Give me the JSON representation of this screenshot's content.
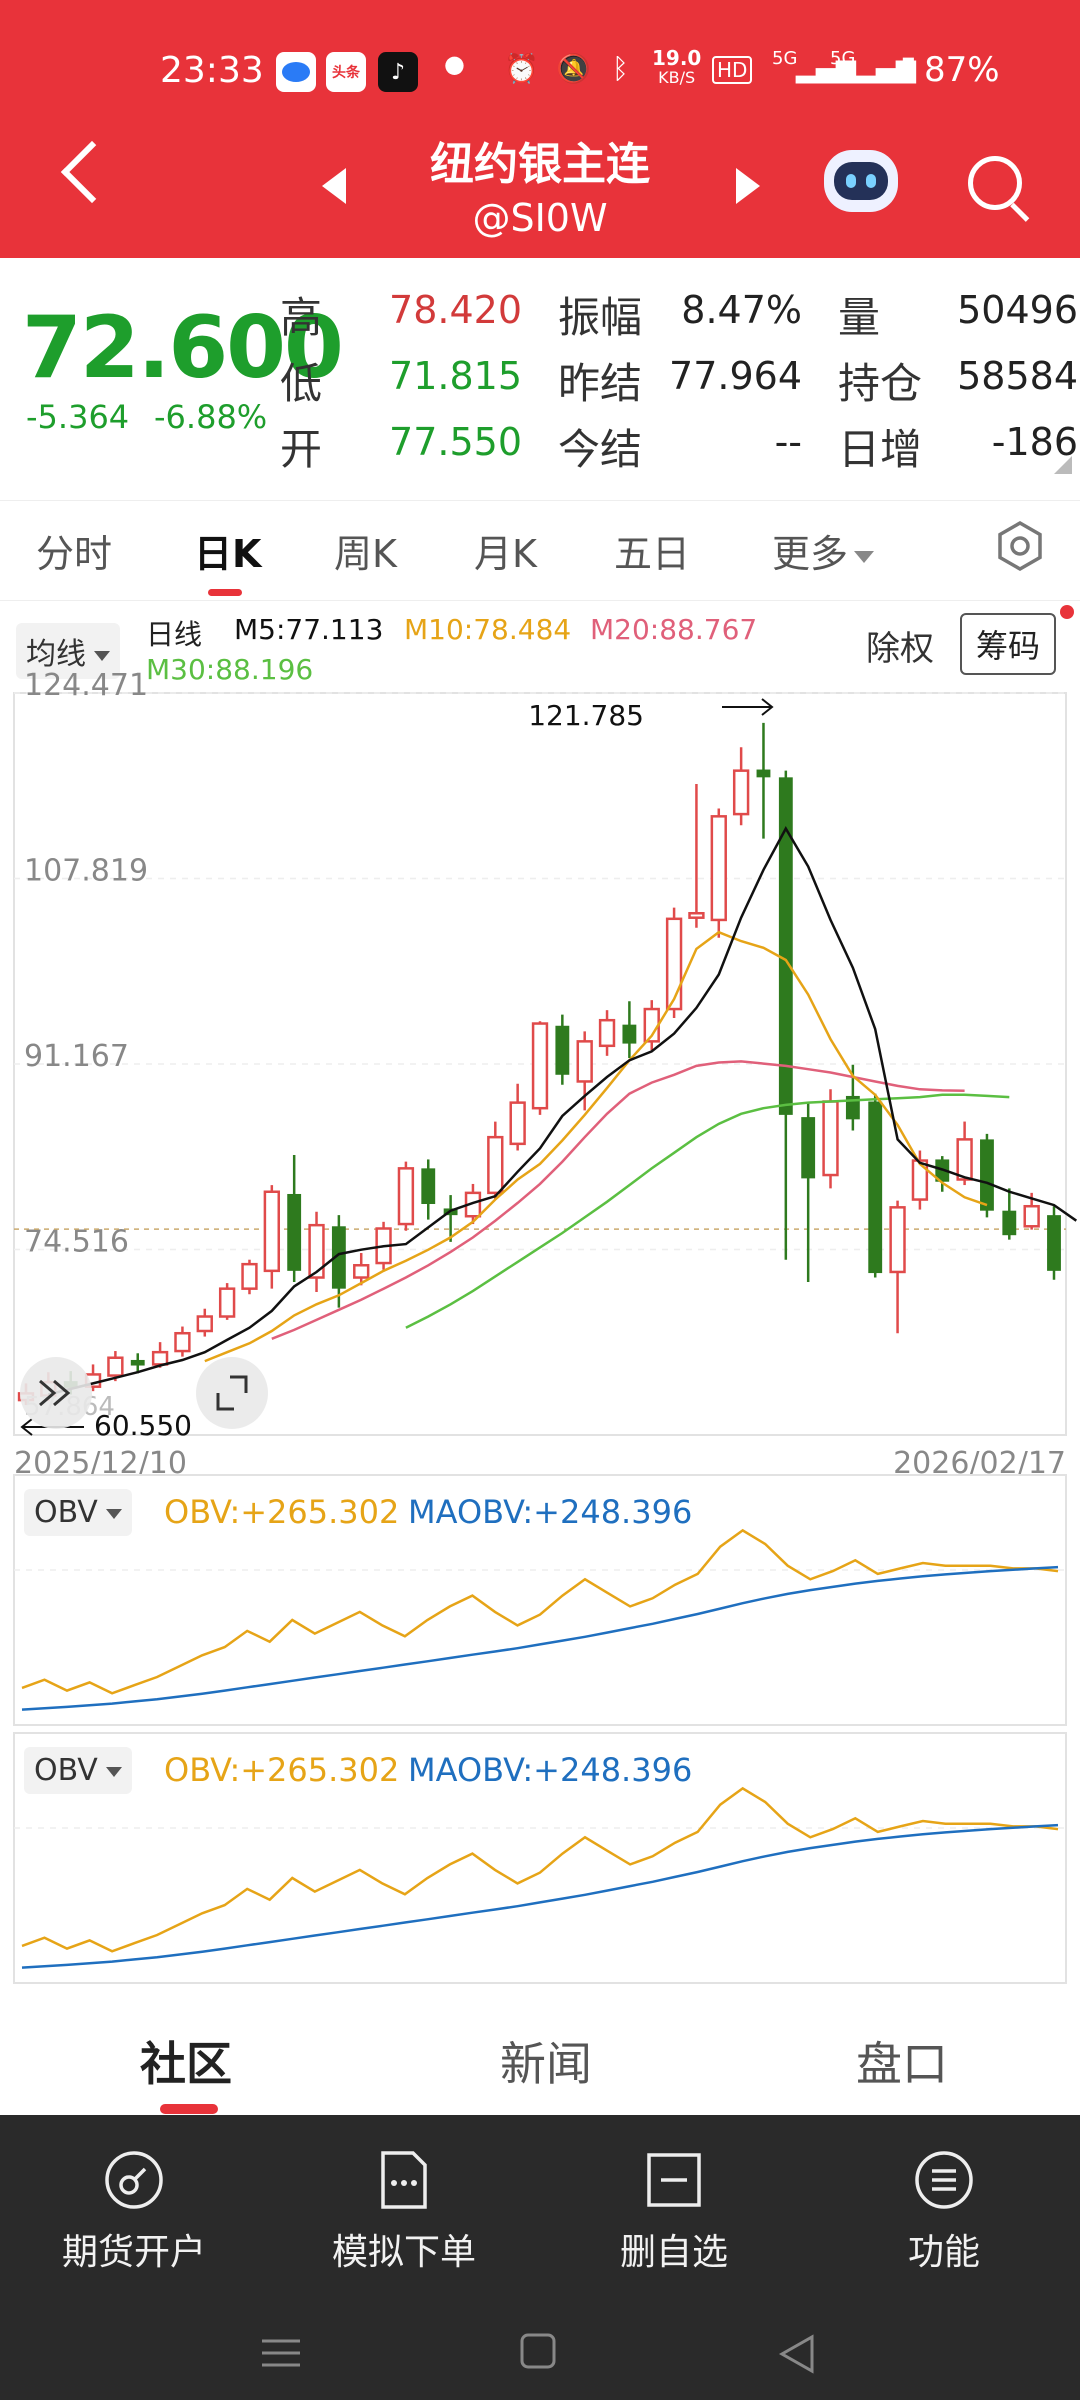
{
  "status": {
    "time": "23:33",
    "app_badge_1": "头条",
    "network_speed": "19.0",
    "network_unit": "KB/S",
    "hd": "HD",
    "signal_1": "5G",
    "signal_2": "5G",
    "battery": "87%"
  },
  "header": {
    "title": "纽约银主连",
    "symbol": "@SI0W"
  },
  "quote": {
    "price": "72.600",
    "change": "-5.364",
    "change_pct": "-6.88%",
    "rows": [
      {
        "l1": "高",
        "v1": "78.420",
        "l2": "振幅",
        "v2": "8.47%",
        "l3": "量",
        "v3": "50496"
      },
      {
        "l1": "低",
        "v1": "71.815",
        "l2": "昨结",
        "v2": "77.964",
        "l3": "持仓",
        "v3": "58584"
      },
      {
        "l1": "开",
        "v1": "77.550",
        "l2": "今结",
        "v2": "--",
        "l3": "日增",
        "v3": "-186"
      }
    ]
  },
  "tabs": [
    "分时",
    "日K",
    "周K",
    "月K",
    "五日",
    "更多"
  ],
  "chart": {
    "ma_dropdown": "均线",
    "period_label": "日线",
    "m5": "M5:77.113",
    "m10": "M10:78.484",
    "m20": "M20:88.767",
    "m30": "M30:88.196",
    "ex_right": "除权",
    "chip_button": "筹码",
    "date_start": "2025/12/10",
    "date_end": "2026/02/17",
    "high_label": "121.785",
    "low_label": "60.550",
    "bottom_axis_label": "57.864",
    "obv_dropdown": "OBV",
    "obv_value": "OBV:+265.302",
    "maobv_value": "MAOBV:+248.396"
  },
  "chart_data": {
    "type": "candlestick",
    "title": "",
    "y_ticks": [
      "124.471",
      "107.819",
      "91.167",
      "74.516"
    ],
    "ylim": [
      57.864,
      124.471
    ],
    "x_range": [
      "2025/12/10",
      "2026/02/17"
    ],
    "candles": [
      {
        "o": 61.0,
        "c": 61.6,
        "h": 62.5,
        "l": 60.55
      },
      {
        "o": 61.4,
        "c": 62.6,
        "h": 63.5,
        "l": 60.9
      },
      {
        "o": 62.7,
        "c": 62.1,
        "h": 63.6,
        "l": 61.5
      },
      {
        "o": 62.2,
        "c": 63.3,
        "h": 64.2,
        "l": 61.8
      },
      {
        "o": 63.2,
        "c": 64.8,
        "h": 65.4,
        "l": 62.7
      },
      {
        "o": 64.6,
        "c": 64.1,
        "h": 65.2,
        "l": 63.4
      },
      {
        "o": 64.2,
        "c": 65.3,
        "h": 66.2,
        "l": 63.9
      },
      {
        "o": 65.4,
        "c": 67.0,
        "h": 67.6,
        "l": 64.9
      },
      {
        "o": 67.2,
        "c": 68.5,
        "h": 69.2,
        "l": 66.7
      },
      {
        "o": 68.5,
        "c": 71.0,
        "h": 71.5,
        "l": 68.2
      },
      {
        "o": 71.0,
        "c": 73.2,
        "h": 73.6,
        "l": 70.5
      },
      {
        "o": 72.6,
        "c": 79.7,
        "h": 80.3,
        "l": 71.0
      },
      {
        "o": 79.5,
        "c": 72.6,
        "h": 83.0,
        "l": 71.6
      },
      {
        "o": 72.0,
        "c": 76.7,
        "h": 77.9,
        "l": 70.7
      },
      {
        "o": 76.6,
        "c": 71.0,
        "h": 77.6,
        "l": 69.3
      },
      {
        "o": 72.0,
        "c": 73.1,
        "h": 74.2,
        "l": 71.3
      },
      {
        "o": 73.3,
        "c": 76.4,
        "h": 77.0,
        "l": 72.7
      },
      {
        "o": 76.8,
        "c": 81.8,
        "h": 82.4,
        "l": 76.2
      },
      {
        "o": 81.8,
        "c": 78.6,
        "h": 82.6,
        "l": 77.2
      },
      {
        "o": 78.2,
        "c": 77.6,
        "h": 79.4,
        "l": 75.2
      },
      {
        "o": 77.5,
        "c": 79.6,
        "h": 80.4,
        "l": 76.8
      },
      {
        "o": 79.6,
        "c": 84.6,
        "h": 86.0,
        "l": 79.0
      },
      {
        "o": 84.0,
        "c": 87.7,
        "h": 89.4,
        "l": 83.4
      },
      {
        "o": 87.2,
        "c": 94.8,
        "h": 95.0,
        "l": 86.6
      },
      {
        "o": 94.6,
        "c": 90.2,
        "h": 95.6,
        "l": 89.3
      },
      {
        "o": 89.6,
        "c": 93.2,
        "h": 94.1,
        "l": 87.0
      },
      {
        "o": 92.8,
        "c": 95.1,
        "h": 96.0,
        "l": 91.9
      },
      {
        "o": 94.7,
        "c": 93.0,
        "h": 96.8,
        "l": 91.7
      },
      {
        "o": 93.2,
        "c": 96.1,
        "h": 96.9,
        "l": 92.4
      },
      {
        "o": 96.1,
        "c": 104.2,
        "h": 105.2,
        "l": 95.3
      },
      {
        "o": 104.3,
        "c": 104.7,
        "h": 116.3,
        "l": 103.4
      },
      {
        "o": 104.1,
        "c": 113.4,
        "h": 114.1,
        "l": 102.5
      },
      {
        "o": 113.6,
        "c": 117.5,
        "h": 119.6,
        "l": 112.6
      },
      {
        "o": 117.6,
        "c": 116.9,
        "h": 121.785,
        "l": 111.4
      },
      {
        "o": 116.9,
        "c": 86.6,
        "h": 117.5,
        "l": 73.6
      },
      {
        "o": 86.4,
        "c": 80.9,
        "h": 87.8,
        "l": 71.6
      },
      {
        "o": 81.2,
        "c": 87.8,
        "h": 88.9,
        "l": 80.0
      },
      {
        "o": 88.3,
        "c": 86.2,
        "h": 91.1,
        "l": 85.2
      },
      {
        "o": 87.8,
        "c": 72.4,
        "h": 88.5,
        "l": 72.0
      },
      {
        "o": 72.5,
        "c": 78.3,
        "h": 78.9,
        "l": 67.0
      },
      {
        "o": 79.0,
        "c": 82.5,
        "h": 83.4,
        "l": 78.1
      },
      {
        "o": 82.6,
        "c": 80.6,
        "h": 82.9,
        "l": 79.7
      },
      {
        "o": 80.8,
        "c": 84.4,
        "h": 86.0,
        "l": 80.3
      },
      {
        "o": 84.4,
        "c": 78.0,
        "h": 84.9,
        "l": 77.4
      },
      {
        "o": 78.0,
        "c": 75.8,
        "h": 80.0,
        "l": 75.4
      },
      {
        "o": 76.6,
        "c": 78.4,
        "h": 79.6,
        "l": 76.3
      },
      {
        "o": 77.6,
        "c": 72.6,
        "h": 78.4,
        "l": 71.8
      }
    ],
    "ma_colors": {
      "m5": "#111111",
      "m10": "#e6a417",
      "m20": "#e0607a",
      "m30": "#5bbf42"
    },
    "ma5": [
      61.5,
      62.0,
      62.5,
      63.0,
      63.5,
      64.1,
      64.6,
      65.3,
      66.4,
      67.5,
      69.0,
      71.2,
      72.5,
      74.1,
      74.5,
      74.8,
      75.0,
      76.5,
      78.0,
      78.7,
      79.3,
      81.5,
      83.6,
      86.5,
      88.3,
      90.0,
      91.5,
      92.3,
      93.9,
      96.2,
      99.2,
      104.3,
      108.6,
      112.3,
      108.9,
      104.1,
      99.8,
      94.3,
      84.4,
      82.3,
      81.7,
      81.0,
      80.5,
      79.7,
      79.1,
      78.5,
      77.1
    ],
    "ma10_start": 8,
    "ma10": [
      64.5,
      65.3,
      66.1,
      67.2,
      68.6,
      69.6,
      70.4,
      71.5,
      72.6,
      73.5,
      74.5,
      75.6,
      77.0,
      79.0,
      80.8,
      82.2,
      84.3,
      86.6,
      89.0,
      91.5,
      93.7,
      97.0,
      101.5,
      103.0,
      102.2,
      101.6,
      100.5,
      97.4,
      93.4,
      90.1,
      88.4,
      85.7,
      82.2,
      80.5,
      79.2,
      78.5
    ],
    "ma20_start": 11,
    "ma20": [
      66.5,
      67.3,
      68.2,
      69.1,
      70.0,
      71.0,
      72.0,
      73.1,
      74.3,
      75.6,
      77.1,
      78.7,
      80.4,
      82.4,
      84.6,
      86.7,
      88.5,
      89.5,
      90.2,
      91.0,
      91.3,
      91.4,
      91.2,
      91.0,
      90.7,
      90.4,
      90.0,
      89.6,
      89.2,
      88.9,
      88.8,
      88.767
    ],
    "ma30_start": 17,
    "ma30": [
      67.5,
      68.5,
      69.6,
      70.8,
      72.1,
      73.4,
      74.7,
      76.0,
      77.4,
      78.8,
      80.3,
      81.8,
      83.2,
      84.6,
      85.8,
      86.7,
      87.2,
      87.5,
      87.7,
      87.8,
      87.9,
      88.0,
      88.1,
      88.2,
      88.4,
      88.4,
      88.3,
      88.196
    ],
    "obv": [
      10,
      13,
      9,
      12,
      8,
      11,
      14,
      18,
      22,
      25,
      31,
      27,
      35,
      30,
      34,
      38,
      33,
      29,
      35,
      40,
      44,
      38,
      33,
      37,
      44,
      50,
      45,
      40,
      43,
      48,
      52,
      62,
      68,
      63,
      55,
      50,
      53,
      57,
      52,
      54,
      56,
      55,
      55,
      55,
      54,
      54,
      53
    ],
    "maobv": [
      2,
      2.5,
      3,
      3.6,
      4.2,
      5,
      5.8,
      6.8,
      7.8,
      9,
      10.2,
      11.4,
      12.6,
      13.8,
      15,
      16.2,
      17.4,
      18.6,
      19.8,
      21,
      22.2,
      23.4,
      24.6,
      26,
      27.4,
      28.8,
      30.4,
      32,
      33.6,
      35.4,
      37.2,
      39.2,
      41.2,
      43,
      44.6,
      46,
      47.2,
      48.4,
      49.4,
      50.3,
      51.1,
      51.8,
      52.4,
      53,
      53.5,
      54,
      54.5
    ]
  },
  "bottom_tabs": [
    "社区",
    "新闻",
    "盘口"
  ],
  "actions": [
    "期货开户",
    "模拟下单",
    "删自选",
    "功能"
  ]
}
